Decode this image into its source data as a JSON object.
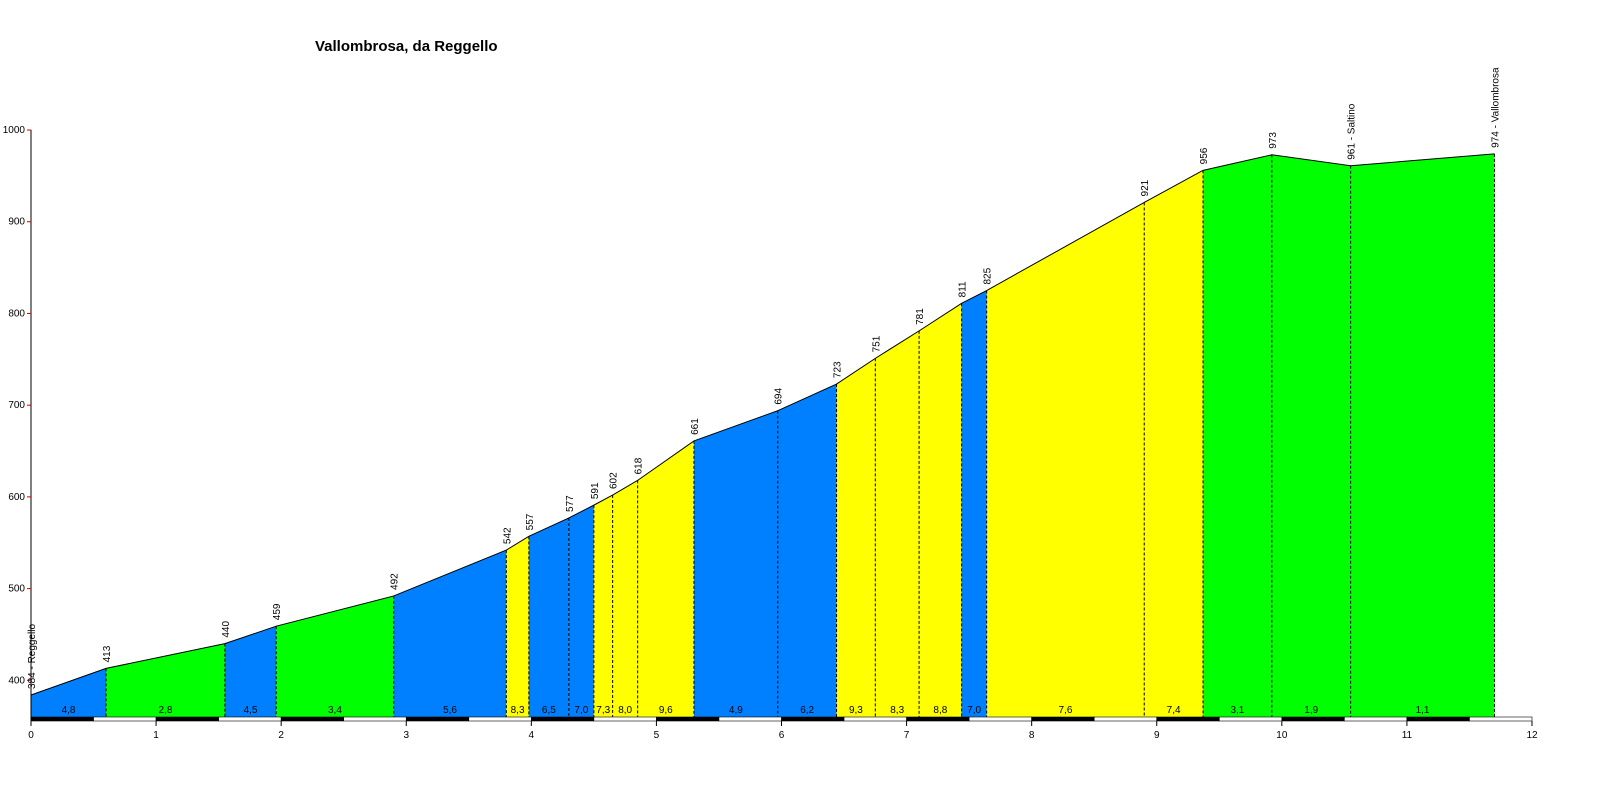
{
  "chart_data": {
    "type": "area",
    "title": "Vallombrosa, da Reggello",
    "xlabel": "",
    "ylabel": "",
    "xlim": [
      0,
      12
    ],
    "ylim": [
      360,
      1000
    ],
    "x_ticks": [
      "0",
      "1",
      "2",
      "3",
      "4",
      "5",
      "6",
      "7",
      "8",
      "9",
      "10",
      "11",
      "12"
    ],
    "y_ticks": [
      "400",
      "500",
      "600",
      "700",
      "800",
      "900",
      "1000"
    ],
    "grid": false,
    "colors": {
      "blue": "#0080ff",
      "green": "#00ff00",
      "yellow": "#ffff00"
    },
    "points": [
      {
        "x": 0.0,
        "alt": 384,
        "label": "384 - Reggello"
      },
      {
        "x": 0.6,
        "alt": 413,
        "label": "413"
      },
      {
        "x": 1.55,
        "alt": 440,
        "label": "440"
      },
      {
        "x": 1.96,
        "alt": 459,
        "label": "459"
      },
      {
        "x": 2.9,
        "alt": 492,
        "label": "492"
      },
      {
        "x": 3.8,
        "alt": 542,
        "label": "542"
      },
      {
        "x": 3.98,
        "alt": 557,
        "label": "557"
      },
      {
        "x": 4.3,
        "alt": 577,
        "label": "577"
      },
      {
        "x": 4.5,
        "alt": 591,
        "label": "591"
      },
      {
        "x": 4.65,
        "alt": 602,
        "label": "602"
      },
      {
        "x": 4.85,
        "alt": 618,
        "label": "618"
      },
      {
        "x": 5.3,
        "alt": 661,
        "label": "661"
      },
      {
        "x": 5.97,
        "alt": 694,
        "label": "694"
      },
      {
        "x": 6.44,
        "alt": 723,
        "label": "723"
      },
      {
        "x": 6.75,
        "alt": 751,
        "label": "751"
      },
      {
        "x": 7.1,
        "alt": 781,
        "label": "781"
      },
      {
        "x": 7.44,
        "alt": 811,
        "label": "811"
      },
      {
        "x": 7.64,
        "alt": 825,
        "label": "825"
      },
      {
        "x": 8.9,
        "alt": 921,
        "label": "921"
      },
      {
        "x": 9.37,
        "alt": 956,
        "label": "956"
      },
      {
        "x": 9.92,
        "alt": 973,
        "label": "973"
      },
      {
        "x": 10.55,
        "alt": 961,
        "label": "961 - Saltino"
      },
      {
        "x": 11.7,
        "alt": 974,
        "label": "974 - Vallombrosa"
      }
    ],
    "segments": [
      {
        "gradient": "4,8",
        "color": "blue"
      },
      {
        "gradient": "2,8",
        "color": "green"
      },
      {
        "gradient": "4,5",
        "color": "blue"
      },
      {
        "gradient": "3,4",
        "color": "green"
      },
      {
        "gradient": "5,6",
        "color": "blue"
      },
      {
        "gradient": "8,3",
        "color": "yellow"
      },
      {
        "gradient": "6,5",
        "color": "blue"
      },
      {
        "gradient": "7,0",
        "color": "blue"
      },
      {
        "gradient": "7,3",
        "color": "yellow"
      },
      {
        "gradient": "8,0",
        "color": "yellow"
      },
      {
        "gradient": "9,6",
        "color": "yellow"
      },
      {
        "gradient": "4,9",
        "color": "blue"
      },
      {
        "gradient": "6,2",
        "color": "blue"
      },
      {
        "gradient": "9,3",
        "color": "yellow"
      },
      {
        "gradient": "8,3",
        "color": "yellow"
      },
      {
        "gradient": "8,8",
        "color": "yellow"
      },
      {
        "gradient": "7,0",
        "color": "blue"
      },
      {
        "gradient": "7,6",
        "color": "yellow"
      },
      {
        "gradient": "7,4",
        "color": "yellow"
      },
      {
        "gradient": "3,1",
        "color": "green"
      },
      {
        "gradient": "1,9",
        "color": "green"
      },
      {
        "gradient": "1,1",
        "color": "green"
      }
    ]
  }
}
